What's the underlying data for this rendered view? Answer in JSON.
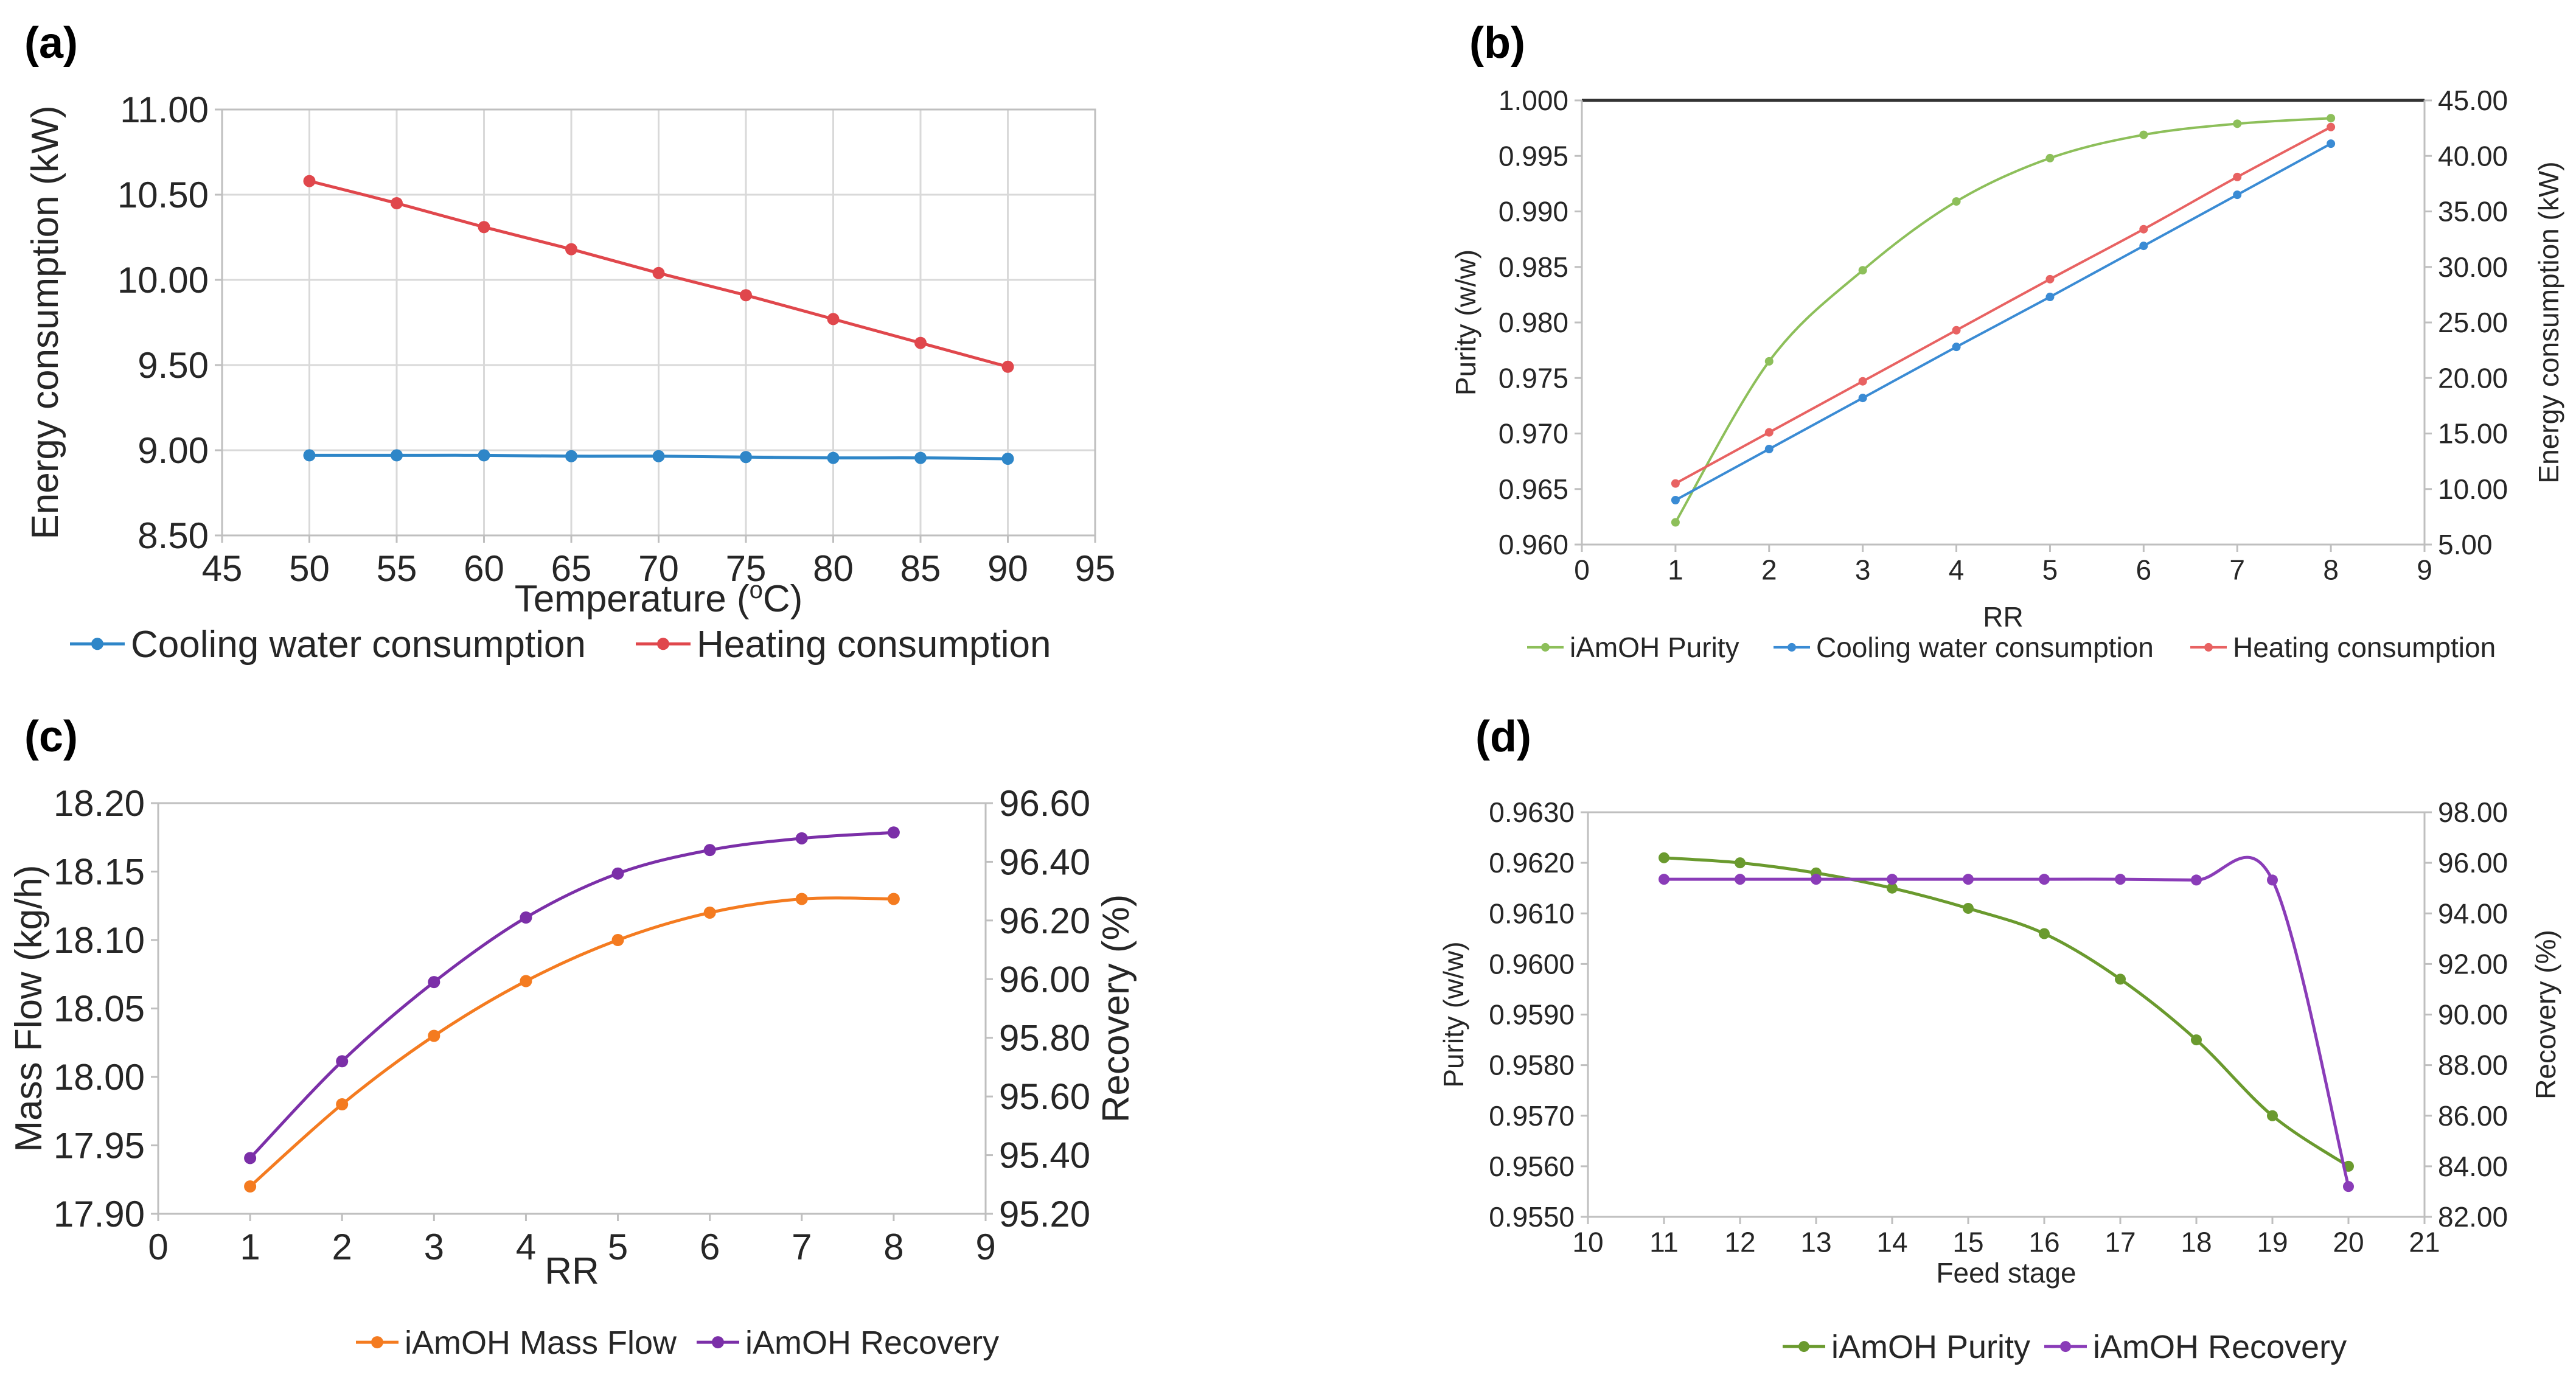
{
  "chart_data": [
    {
      "id": "a",
      "panel_label": "(a)",
      "type": "line",
      "xlabel": "Temperature (°C)",
      "ylabel": "Energy consumption (kW)",
      "xlim": [
        45,
        95
      ],
      "ylim": [
        8.5,
        11.0
      ],
      "xticks": [
        "45",
        "50",
        "55",
        "60",
        "65",
        "70",
        "75",
        "80",
        "85",
        "90",
        "95"
      ],
      "yticks": [
        "8.50",
        "9.00",
        "9.50",
        "10.00",
        "10.50",
        "11.00"
      ],
      "grid": true,
      "legend_position": "bottom",
      "series": [
        {
          "name": "Cooling water consumption",
          "axis": "left",
          "color": "#2E86C8",
          "x": [
            50,
            55,
            60,
            65,
            70,
            75,
            80,
            85,
            90
          ],
          "y": [
            8.97,
            8.97,
            8.97,
            8.965,
            8.965,
            8.96,
            8.955,
            8.955,
            8.95
          ]
        },
        {
          "name": "Heating consumption",
          "axis": "left",
          "color": "#E0474C",
          "x": [
            50,
            55,
            60,
            65,
            70,
            75,
            80,
            85,
            90
          ],
          "y": [
            10.58,
            10.45,
            10.31,
            10.18,
            10.04,
            9.91,
            9.77,
            9.63,
            9.49
          ]
        }
      ]
    },
    {
      "id": "b",
      "panel_label": "(b)",
      "type": "line",
      "xlabel": "RR",
      "ylabel": "Purity (w/w)",
      "ylabel_right": "Energy consumption (kW)",
      "xlim": [
        0,
        9
      ],
      "ylim": [
        0.96,
        1.0
      ],
      "ylim_right": [
        5,
        45
      ],
      "xticks": [
        "0",
        "1",
        "2",
        "3",
        "4",
        "5",
        "6",
        "7",
        "8",
        "9"
      ],
      "yticks": [
        "0.960",
        "0.965",
        "0.970",
        "0.975",
        "0.980",
        "0.985",
        "0.990",
        "0.995",
        "1.000"
      ],
      "yticks_right": [
        "5.00",
        "10.00",
        "15.00",
        "20.00",
        "25.00",
        "30.00",
        "35.00",
        "40.00",
        "45.00"
      ],
      "grid": false,
      "legend_position": "bottom",
      "series": [
        {
          "name": "iAmOH Purity",
          "axis": "left",
          "color": "#8DBF5A",
          "x": [
            1,
            2,
            3,
            4,
            5,
            6,
            7,
            8
          ],
          "y": [
            0.962,
            0.9765,
            0.9847,
            0.9909,
            0.9948,
            0.9969,
            0.9979,
            0.9984
          ]
        },
        {
          "name": "Cooling water consumption",
          "axis": "right",
          "color": "#3A8BD4",
          "x": [
            1,
            2,
            3,
            4,
            5,
            6,
            7,
            8
          ],
          "y": [
            9.0,
            13.6,
            18.2,
            22.8,
            27.3,
            31.9,
            36.5,
            41.1
          ]
        },
        {
          "name": "Heating consumption",
          "axis": "right",
          "color": "#E86262",
          "x": [
            1,
            2,
            3,
            4,
            5,
            6,
            7,
            8
          ],
          "y": [
            10.5,
            15.1,
            19.7,
            24.3,
            28.9,
            33.4,
            38.1,
            42.6
          ]
        }
      ]
    },
    {
      "id": "c",
      "panel_label": "(c)",
      "type": "line",
      "xlabel": "RR",
      "ylabel": "Mass Flow (kg/h)",
      "ylabel_right": "Recovery (%)",
      "xlim": [
        0,
        9
      ],
      "ylim": [
        17.9,
        18.2
      ],
      "ylim_right": [
        95.2,
        96.6
      ],
      "xticks": [
        "0",
        "1",
        "2",
        "3",
        "4",
        "5",
        "6",
        "7",
        "8",
        "9"
      ],
      "yticks": [
        "17.90",
        "17.95",
        "18.00",
        "18.05",
        "18.10",
        "18.15",
        "18.20"
      ],
      "yticks_right": [
        "95.20",
        "95.40",
        "95.60",
        "95.80",
        "96.00",
        "96.20",
        "96.40",
        "96.60"
      ],
      "grid": false,
      "legend_position": "bottom",
      "series": [
        {
          "name": "iAmOH Mass Flow",
          "axis": "left",
          "color": "#F47B20",
          "x": [
            1,
            2,
            3,
            4,
            5,
            6,
            7,
            8
          ],
          "y": [
            17.92,
            17.98,
            18.03,
            18.07,
            18.1,
            18.12,
            18.13,
            18.13
          ]
        },
        {
          "name": "iAmOH Recovery",
          "axis": "right",
          "color": "#7B2FA8",
          "x": [
            1,
            2,
            3,
            4,
            5,
            6,
            7,
            8
          ],
          "y": [
            95.39,
            95.72,
            95.99,
            96.21,
            96.36,
            96.44,
            96.48,
            96.5
          ]
        }
      ]
    },
    {
      "id": "d",
      "panel_label": "(d)",
      "type": "line",
      "xlabel": "Feed stage",
      "ylabel": "Purity (w/w)",
      "ylabel_right": "Recovery (%)",
      "xlim": [
        10,
        21
      ],
      "ylim": [
        0.955,
        0.963
      ],
      "ylim_right": [
        82,
        98
      ],
      "xticks": [
        "10",
        "11",
        "12",
        "13",
        "14",
        "15",
        "16",
        "17",
        "18",
        "19",
        "20",
        "21"
      ],
      "yticks": [
        "0.9550",
        "0.9560",
        "0.9570",
        "0.9580",
        "0.9590",
        "0.9600",
        "0.9610",
        "0.9620",
        "0.9630"
      ],
      "yticks_right": [
        "82.00",
        "84.00",
        "86.00",
        "88.00",
        "90.00",
        "92.00",
        "94.00",
        "96.00",
        "98.00"
      ],
      "grid": false,
      "legend_position": "bottom",
      "series": [
        {
          "name": "iAmOH Purity",
          "axis": "left",
          "color": "#6A9A2E",
          "x": [
            11,
            12,
            13,
            14,
            15,
            16,
            17,
            18,
            19,
            20
          ],
          "y": [
            0.9621,
            0.962,
            0.9618,
            0.9615,
            0.9611,
            0.9606,
            0.9597,
            0.9585,
            0.957,
            0.956
          ]
        },
        {
          "name": "iAmOH Recovery",
          "axis": "right",
          "color": "#8A3CB8",
          "x": [
            11,
            12,
            13,
            14,
            15,
            16,
            17,
            18,
            19,
            20
          ],
          "y": [
            95.35,
            95.35,
            95.35,
            95.35,
            95.35,
            95.35,
            95.35,
            95.32,
            95.32,
            83.2
          ]
        }
      ]
    }
  ]
}
